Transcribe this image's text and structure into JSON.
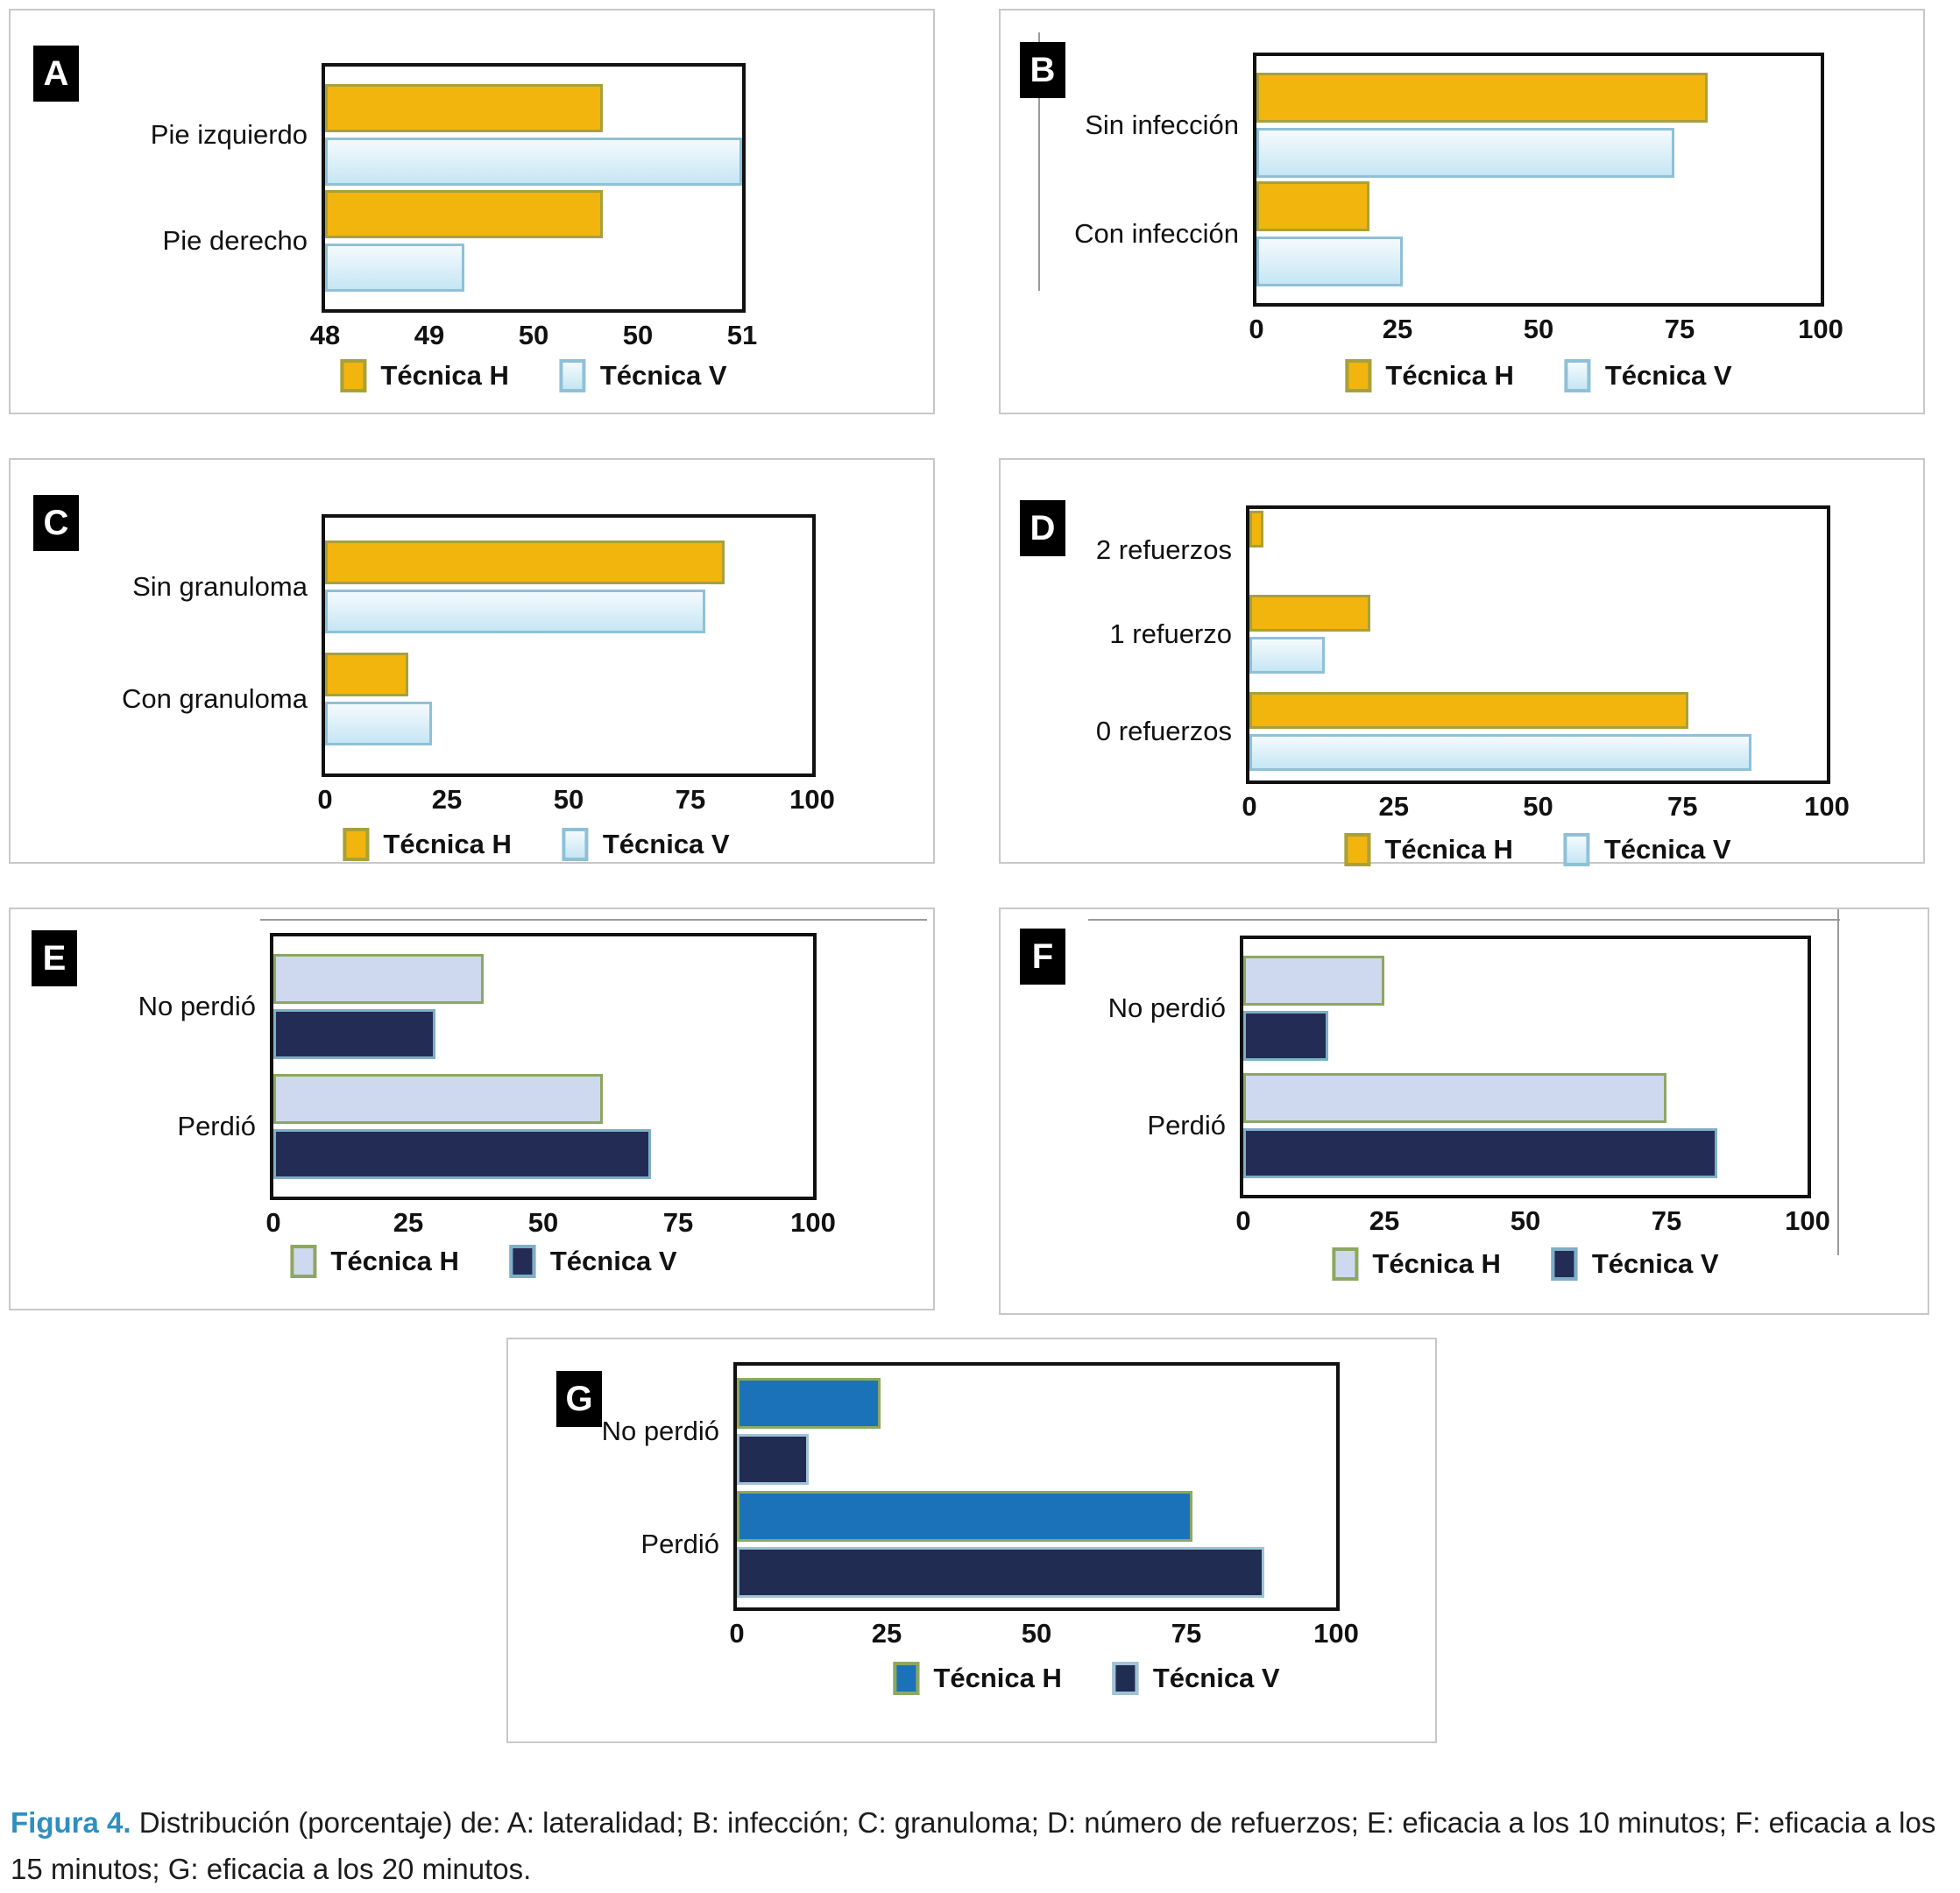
{
  "figure": {
    "caption_label": "Figura 4.",
    "caption_text": " Distribución (porcentaje) de: A: lateralidad; B: infección; C: granuloma; D: número de refuerzos; E: eficacia a los 10 minutos; F: eficacia a los 15 minutos; G: eficacia a los 20 minutos."
  },
  "colors": {
    "caption_label": "#2E8FC0",
    "panel_border": "#C8C8C8",
    "plot_border": "#111111",
    "label_square_bg": "#000000",
    "label_square_text": "#FFFFFF",
    "palettes": {
      "yellow_lightblue": {
        "h_fill": "#F2B50D",
        "h_stroke": "#A7A13B",
        "v_fill_top": "#F4FAFD",
        "v_fill_bottom": "#C6E6F4",
        "v_stroke": "#8FC0D8"
      },
      "lavender_navy": {
        "h_fill": "#CED9EF",
        "h_stroke": "#8CA85F",
        "v_fill_top": "#232C54",
        "v_fill_bottom": "#232C54",
        "v_stroke": "#7FAEC6"
      },
      "blue_navy": {
        "h_fill": "#1B72B8",
        "h_stroke": "#8CA85F",
        "v_fill_top": "#212C52",
        "v_fill_bottom": "#212C52",
        "v_stroke": "#9FC2D4"
      }
    }
  },
  "chart_data": [
    {
      "panel": "A",
      "type": "bar",
      "orientation": "horizontal",
      "grid": false,
      "title": "Lateralidad",
      "legend_position": "bottom",
      "palette": "yellow_lightblue",
      "categories": [
        "Pie izquierdo",
        "Pie derecho"
      ],
      "series": [
        {
          "name": "Técnica H",
          "values": [
            50,
            50
          ]
        },
        {
          "name": "Técnica V",
          "values": [
            51,
            49
          ]
        }
      ],
      "xlim": [
        48,
        51
      ],
      "tick_labels": [
        "48",
        "49",
        "50",
        "50",
        "51"
      ]
    },
    {
      "panel": "B",
      "type": "bar",
      "orientation": "horizontal",
      "grid": false,
      "title": "Infección",
      "legend_position": "bottom",
      "palette": "yellow_lightblue",
      "categories": [
        "Sin infección",
        "Con infección"
      ],
      "series": [
        {
          "name": "Técnica H",
          "values": [
            80,
            20
          ]
        },
        {
          "name": "Técnica V",
          "values": [
            74,
            26
          ]
        }
      ],
      "xlim": [
        0,
        100
      ],
      "tick_labels": [
        "0",
        "25",
        "50",
        "75",
        "100"
      ]
    },
    {
      "panel": "C",
      "type": "bar",
      "orientation": "horizontal",
      "grid": false,
      "title": "Granuloma",
      "legend_position": "bottom",
      "palette": "yellow_lightblue",
      "categories": [
        "Sin granuloma",
        "Con granuloma"
      ],
      "series": [
        {
          "name": "Técnica H",
          "values": [
            82,
            17
          ]
        },
        {
          "name": "Técnica V",
          "values": [
            78,
            22
          ]
        }
      ],
      "xlim": [
        0,
        100
      ],
      "tick_labels": [
        "0",
        "25",
        "50",
        "75",
        "100"
      ]
    },
    {
      "panel": "D",
      "type": "bar",
      "orientation": "horizontal",
      "grid": false,
      "title": "Número de refuerzos",
      "legend_position": "bottom",
      "palette": "yellow_lightblue",
      "categories": [
        "2 refuerzos",
        "1 refuerzo",
        "0 refuerzos"
      ],
      "series": [
        {
          "name": "Técnica H",
          "values": [
            2.5,
            21,
            76
          ]
        },
        {
          "name": "Técnica V",
          "values": [
            0,
            13,
            87
          ]
        }
      ],
      "xlim": [
        0,
        100
      ],
      "tick_labels": [
        "0",
        "25",
        "50",
        "75",
        "100"
      ]
    },
    {
      "panel": "E",
      "type": "bar",
      "orientation": "horizontal",
      "grid": false,
      "title": "Eficacia a los 10 minutos",
      "legend_position": "bottom",
      "palette": "lavender_navy",
      "categories": [
        "No perdió",
        "Perdió"
      ],
      "series": [
        {
          "name": "Técnica H",
          "values": [
            39,
            61
          ]
        },
        {
          "name": "Técnica V",
          "values": [
            30,
            70
          ]
        }
      ],
      "xlim": [
        0,
        100
      ],
      "tick_labels": [
        "0",
        "25",
        "50",
        "75",
        "100"
      ]
    },
    {
      "panel": "F",
      "type": "bar",
      "orientation": "horizontal",
      "grid": false,
      "title": "Eficacia a los 15 minutos",
      "legend_position": "bottom",
      "palette": "lavender_navy",
      "categories": [
        "No perdió",
        "Perdió"
      ],
      "series": [
        {
          "name": "Técnica H",
          "values": [
            25,
            75
          ]
        },
        {
          "name": "Técnica V",
          "values": [
            15,
            84
          ]
        }
      ],
      "xlim": [
        0,
        100
      ],
      "tick_labels": [
        "0",
        "25",
        "50",
        "75",
        "100"
      ]
    },
    {
      "panel": "G",
      "type": "bar",
      "orientation": "horizontal",
      "grid": false,
      "title": "Eficacia a los 20 minutos",
      "legend_position": "bottom",
      "palette": "blue_navy",
      "categories": [
        "No perdió",
        "Perdió"
      ],
      "series": [
        {
          "name": "Técnica H",
          "values": [
            24,
            76
          ]
        },
        {
          "name": "Técnica V",
          "values": [
            12,
            88
          ]
        }
      ],
      "xlim": [
        0,
        100
      ],
      "tick_labels": [
        "0",
        "25",
        "50",
        "75",
        "100"
      ]
    }
  ]
}
